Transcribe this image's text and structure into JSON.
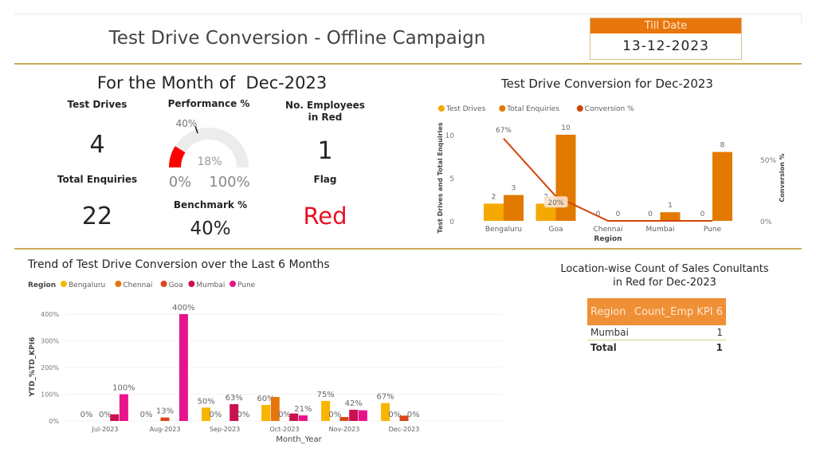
{
  "header": {
    "title": "Test Drive Conversion - Offline Campaign",
    "till_date_label": "Till Date",
    "till_date_value": "13-12-2023"
  },
  "kpis": {
    "month_heading": "For the Month of  Dec-2023",
    "test_drives_label": "Test Drives",
    "test_drives_value": "4",
    "total_enquiries_label": "Total Enquiries",
    "total_enquiries_value": "22",
    "performance_label": "Performance %",
    "gauge": {
      "value": 18,
      "value_label": "18%",
      "target": 40,
      "target_label": "40%",
      "min_label": "0%",
      "max_label": "100%",
      "fill_color": "#ff0000"
    },
    "benchmark_label": "Benchmark %",
    "benchmark_value": "40%",
    "employees_red_label": "No. Employees in Red",
    "employees_red_value": "1",
    "flag_label": "Flag",
    "flag_value": "Red",
    "flag_color": "#e81123"
  },
  "chart_data": [
    {
      "type": "bar",
      "title": "Test Drive Conversion for Dec-2023",
      "xlabel": "Region",
      "ylabel": "Test Drives and Total Enquiries",
      "y2label": "Conversion %",
      "categories": [
        "Bengaluru",
        "Goa",
        "Chennai",
        "Mumbai",
        "Pune"
      ],
      "ylim": [
        0,
        10.5
      ],
      "yticks": [
        "0",
        "5",
        "10"
      ],
      "y2ticks": [
        "0%",
        "50%"
      ],
      "legend": "top-left",
      "series": [
        {
          "name": "Test Drives",
          "kind": "bar",
          "color": "#f5a800",
          "values": [
            2,
            2,
            0,
            0,
            0
          ],
          "labels": [
            "2",
            "2",
            "0",
            "0",
            "0"
          ]
        },
        {
          "name": "Total Enquiries",
          "kind": "bar",
          "color": "#e27a00",
          "values": [
            3,
            10,
            0,
            1,
            8
          ],
          "labels": [
            "3",
            "10",
            "0",
            "1",
            "8"
          ]
        },
        {
          "name": "Conversion %",
          "kind": "line",
          "axis": "right",
          "color": "#d2450a",
          "values": [
            67,
            20,
            0,
            0,
            0
          ],
          "labels": [
            "67%",
            "20%",
            "",
            "",
            ""
          ]
        }
      ]
    },
    {
      "type": "bar",
      "title": "Trend of Test Drive Conversion over the Last 6 Months",
      "xlabel": "Month_Year",
      "ylabel": "YTD_%TD_KPI6",
      "legend_title": "Region",
      "legend": "top-left",
      "categories": [
        "Jul-2023",
        "Aug-2023",
        "Sep-2023",
        "Oct-2023",
        "Nov-2023",
        "Dec-2023"
      ],
      "ylim": [
        0,
        400
      ],
      "yticks": [
        "0%",
        "100%",
        "200%",
        "300%",
        "400%"
      ],
      "series": [
        {
          "name": "Bengaluru",
          "color": "#f7b500",
          "values": [
            0,
            0,
            50,
            60,
            75,
            67
          ],
          "labels": [
            "0%",
            "0%",
            "50%",
            "60%",
            "75%",
            "67%"
          ]
        },
        {
          "name": "Chennai",
          "color": "#e6760c",
          "values": [
            null,
            null,
            0,
            90,
            0,
            0
          ],
          "labels": [
            "",
            "",
            "0%",
            "",
            "0%",
            "0%"
          ]
        },
        {
          "name": "Goa",
          "color": "#d9461a",
          "values": [
            0,
            13,
            null,
            0,
            15,
            20
          ],
          "labels": [
            "0%",
            "13%",
            "",
            "0%",
            "",
            ""
          ]
        },
        {
          "name": "Mumbai",
          "color": "#c9114f",
          "values": [
            25,
            null,
            63,
            28,
            42,
            0
          ],
          "labels": [
            "",
            "",
            "63%",
            "",
            "42%",
            "0%"
          ]
        },
        {
          "name": "Pune",
          "color": "#e8148b",
          "values": [
            100,
            400,
            0,
            21,
            40,
            null
          ],
          "labels": [
            "100%",
            "400%",
            "0%",
            "21%",
            "",
            ""
          ]
        }
      ]
    }
  ],
  "table": {
    "title_line1": "Location-wise Count of Sales Conultants",
    "title_line2": "in Red for Dec-2023",
    "header_color": "#ef8f36",
    "columns": [
      "Region",
      "Count_Emp KPI 6"
    ],
    "rows": [
      {
        "region": "Mumbai",
        "count": "1"
      }
    ],
    "total_label": "Total",
    "total_value": "1"
  }
}
